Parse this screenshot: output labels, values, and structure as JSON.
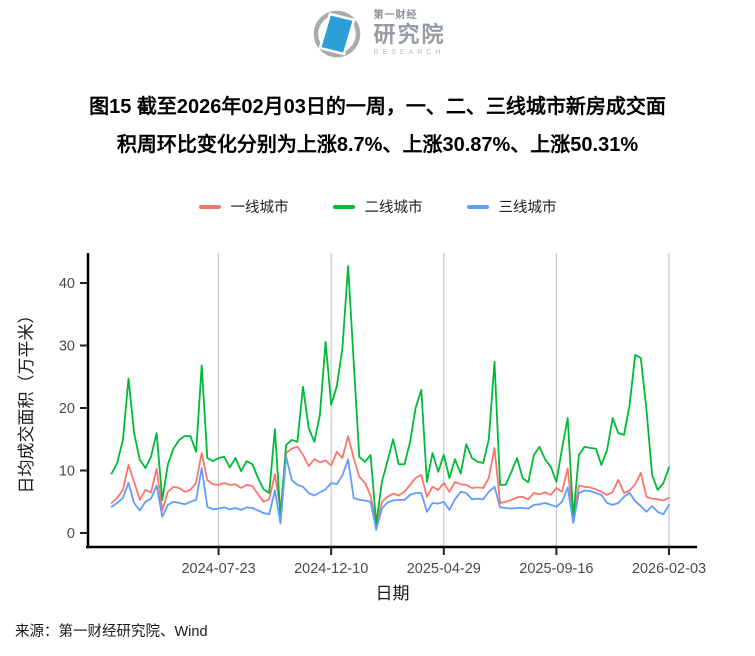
{
  "header": {
    "logo": {
      "brand_top": "第一财经",
      "brand_main": "研究院",
      "brand_sub": "RESEARCH"
    }
  },
  "title": {
    "line1": "图15  截至2026年02月03日的一周，一、二、三线城市新房成交面",
    "line2": "积周环比变化分别为上涨8.7%、上涨30.87%、上涨50.31%"
  },
  "source": "来源：第一财经研究院、Wind",
  "chart_data": {
    "type": "line",
    "title": "",
    "xlabel": "日期",
    "ylabel": "日均成交面积（万平米）",
    "grid": "vertical-only",
    "legend_position": "top",
    "y_ticks": [
      0,
      10,
      20,
      30,
      40
    ],
    "ylim": [
      -1.9,
      44.8
    ],
    "x_tick_labels": [
      "2024-07-23",
      "2024-12-10",
      "2025-04-29",
      "2025-09-16",
      "2026-02-03"
    ],
    "x_tick_indices": [
      19,
      39,
      59,
      79,
      99
    ],
    "dates": [
      "2024-03-12",
      "2024-03-19",
      "2024-03-26",
      "2024-04-02",
      "2024-04-09",
      "2024-04-16",
      "2024-04-23",
      "2024-04-30",
      "2024-05-07",
      "2024-05-14",
      "2024-05-21",
      "2024-05-28",
      "2024-06-04",
      "2024-06-11",
      "2024-06-18",
      "2024-06-25",
      "2024-07-02",
      "2024-07-09",
      "2024-07-16",
      "2024-07-23",
      "2024-07-30",
      "2024-08-06",
      "2024-08-13",
      "2024-08-20",
      "2024-08-27",
      "2024-09-03",
      "2024-09-10",
      "2024-09-17",
      "2024-09-24",
      "2024-10-01",
      "2024-10-08",
      "2024-10-15",
      "2024-10-22",
      "2024-10-29",
      "2024-11-05",
      "2024-11-12",
      "2024-11-19",
      "2024-11-26",
      "2024-12-03",
      "2024-12-10",
      "2024-12-17",
      "2024-12-24",
      "2024-12-31",
      "2025-01-07",
      "2025-01-14",
      "2025-01-21",
      "2025-01-28",
      "2025-02-04",
      "2025-02-11",
      "2025-02-18",
      "2025-02-25",
      "2025-03-04",
      "2025-03-11",
      "2025-03-18",
      "2025-03-25",
      "2025-04-01",
      "2025-04-08",
      "2025-04-15",
      "2025-04-22",
      "2025-04-29",
      "2025-05-06",
      "2025-05-13",
      "2025-05-20",
      "2025-05-27",
      "2025-06-03",
      "2025-06-10",
      "2025-06-17",
      "2025-06-24",
      "2025-07-01",
      "2025-07-08",
      "2025-07-15",
      "2025-07-22",
      "2025-07-29",
      "2025-08-05",
      "2025-08-12",
      "2025-08-19",
      "2025-08-26",
      "2025-09-02",
      "2025-09-09",
      "2025-09-16",
      "2025-09-23",
      "2025-09-30",
      "2025-10-07",
      "2025-10-14",
      "2025-10-21",
      "2025-10-28",
      "2025-11-04",
      "2025-11-11",
      "2025-11-18",
      "2025-11-25",
      "2025-12-02",
      "2025-12-09",
      "2025-12-16",
      "2025-12-23",
      "2025-12-30",
      "2026-01-06",
      "2026-01-13",
      "2026-01-20",
      "2026-01-27",
      "2026-02-03"
    ],
    "series": [
      {
        "name": "一线城市",
        "color": "#F8766D",
        "values": [
          4.8,
          5.6,
          6.9,
          10.9,
          8.2,
          5.3,
          6.9,
          6.5,
          10.3,
          3.6,
          6.6,
          7.4,
          7.2,
          6.6,
          6.9,
          8.0,
          12.8,
          8.5,
          7.8,
          7.7,
          8.0,
          7.7,
          7.8,
          7.2,
          7.7,
          7.5,
          6.2,
          5.0,
          5.4,
          9.4,
          3.8,
          12.8,
          13.5,
          13.8,
          12.5,
          10.7,
          11.8,
          11.3,
          11.6,
          10.8,
          13.0,
          12.0,
          15.5,
          12.0,
          9.0,
          8.0,
          6.0,
          1.2,
          5.0,
          5.8,
          6.3,
          6.0,
          6.6,
          7.7,
          8.8,
          9.3,
          5.8,
          7.4,
          6.9,
          8.0,
          6.6,
          8.2,
          7.8,
          7.7,
          7.2,
          7.3,
          7.2,
          8.8,
          13.6,
          4.8,
          5.0,
          5.3,
          5.7,
          5.8,
          5.4,
          6.4,
          6.2,
          6.5,
          6.1,
          7.2,
          6.6,
          10.3,
          2.2,
          7.6,
          7.4,
          7.3,
          7.0,
          6.6,
          6.1,
          6.6,
          8.5,
          6.4,
          6.8,
          7.8,
          9.6,
          5.8,
          5.5,
          5.4,
          5.2,
          5.65
        ]
      },
      {
        "name": "二线城市",
        "color": "#00BA38",
        "values": [
          9.5,
          11.2,
          14.9,
          24.7,
          16.0,
          11.7,
          10.4,
          12.2,
          16.0,
          5.3,
          11.0,
          13.5,
          14.9,
          15.5,
          15.5,
          13.0,
          26.8,
          12.0,
          11.5,
          12.0,
          12.2,
          10.5,
          12.0,
          9.9,
          11.5,
          11.0,
          8.8,
          7.0,
          6.4,
          16.6,
          2.5,
          14.1,
          14.9,
          14.6,
          23.4,
          16.8,
          14.6,
          18.9,
          30.6,
          20.5,
          23.5,
          29.5,
          42.7,
          27.4,
          12.2,
          11.4,
          12.5,
          1.5,
          8.2,
          11.5,
          15.0,
          11.0,
          11.0,
          14.5,
          20.0,
          22.9,
          8.2,
          12.8,
          9.8,
          12.5,
          8.8,
          11.8,
          9.5,
          14.2,
          12.0,
          11.4,
          11.2,
          15.0,
          27.4,
          7.7,
          7.7,
          9.8,
          12.0,
          8.8,
          8.1,
          12.5,
          13.8,
          11.8,
          10.6,
          8.2,
          13.5,
          18.4,
          2.5,
          12.5,
          13.8,
          13.6,
          13.5,
          10.9,
          13.3,
          18.4,
          16.0,
          15.7,
          20.5,
          28.5,
          28.0,
          19.7,
          9.3,
          6.9,
          8.0,
          10.5
        ]
      },
      {
        "name": "三线城市",
        "color": "#619CFF",
        "values": [
          4.2,
          4.8,
          5.6,
          8.0,
          4.8,
          3.6,
          5.0,
          5.5,
          7.6,
          2.6,
          4.5,
          5.0,
          4.8,
          4.6,
          5.0,
          5.3,
          10.4,
          4.2,
          3.8,
          3.9,
          4.1,
          3.8,
          4.0,
          3.7,
          4.1,
          4.0,
          3.6,
          3.2,
          3.0,
          6.8,
          1.5,
          12.2,
          8.5,
          7.7,
          7.4,
          6.4,
          6.0,
          6.5,
          7.0,
          8.0,
          7.8,
          9.2,
          11.8,
          5.6,
          5.3,
          5.2,
          5.0,
          0.5,
          3.9,
          4.9,
          5.2,
          5.3,
          5.3,
          6.1,
          6.4,
          6.4,
          3.4,
          4.8,
          4.7,
          5.0,
          3.7,
          5.4,
          6.6,
          6.4,
          5.4,
          5.5,
          5.4,
          6.6,
          7.4,
          4.1,
          4.0,
          3.9,
          4.0,
          4.0,
          3.9,
          4.5,
          4.6,
          4.8,
          4.5,
          4.2,
          5.0,
          7.3,
          1.6,
          6.4,
          6.8,
          6.7,
          6.4,
          6.1,
          4.8,
          4.5,
          4.8,
          5.8,
          6.4,
          5.1,
          4.3,
          3.4,
          4.3,
          3.4,
          3.0,
          4.5
        ]
      }
    ],
    "styles": {
      "gridline_color": "#c9c9c9",
      "axis_color": "#000000",
      "tick_label_color": "#4a4a4a",
      "axis_title_color": "#1a1a1a",
      "logo_blue": "#2d9fd8",
      "logo_gray": "#a8acb0"
    }
  }
}
